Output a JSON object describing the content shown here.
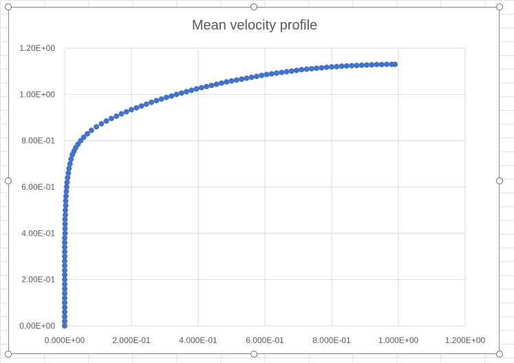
{
  "chart_data": {
    "type": "scatter",
    "title": "Mean velocity profile",
    "xlabel": "",
    "ylabel": "",
    "xlim": [
      0,
      1.2
    ],
    "ylim": [
      0,
      1.2
    ],
    "x_ticks": [
      "0.000E+00",
      "2.000E-01",
      "4.000E-01",
      "6.000E-01",
      "8.000E-01",
      "1.000E+00",
      "1.200E+00"
    ],
    "y_ticks": [
      "0.00E+00",
      "2.00E-01",
      "4.00E-01",
      "6.00E-01",
      "8.00E-01",
      "1.00E+00",
      "1.20E+00"
    ],
    "grid": true,
    "legend": "none",
    "series": [
      {
        "color": "#4472c4",
        "x": [
          0.0,
          0.0,
          0.0,
          0.0,
          0.0,
          0.0,
          0.0,
          0.0,
          0.0,
          0.0,
          0.0,
          0.0,
          0.0,
          0.0,
          0.0,
          0.0,
          0.0,
          0.0,
          0.0,
          0.0,
          0.001,
          0.001,
          0.001,
          0.001,
          0.002,
          0.002,
          0.003,
          0.003,
          0.004,
          0.005,
          0.006,
          0.007,
          0.009,
          0.011,
          0.013,
          0.016,
          0.019,
          0.023,
          0.028,
          0.033,
          0.04,
          0.048,
          0.057,
          0.068,
          0.08,
          0.095,
          0.11,
          0.125,
          0.14,
          0.155,
          0.17,
          0.185,
          0.2,
          0.215,
          0.23,
          0.245,
          0.26,
          0.275,
          0.29,
          0.305,
          0.32,
          0.335,
          0.35,
          0.365,
          0.38,
          0.395,
          0.41,
          0.425,
          0.44,
          0.455,
          0.47,
          0.485,
          0.5,
          0.515,
          0.53,
          0.545,
          0.56,
          0.575,
          0.59,
          0.605,
          0.62,
          0.635,
          0.65,
          0.665,
          0.68,
          0.695,
          0.71,
          0.725,
          0.74,
          0.755,
          0.77,
          0.785,
          0.8,
          0.815,
          0.83,
          0.845,
          0.86,
          0.875,
          0.89,
          0.905,
          0.92,
          0.935,
          0.95,
          0.965,
          0.98,
          0.99
        ],
        "y": [
          0.0,
          0.02,
          0.04,
          0.06,
          0.08,
          0.1,
          0.12,
          0.14,
          0.16,
          0.18,
          0.2,
          0.22,
          0.24,
          0.26,
          0.28,
          0.3,
          0.32,
          0.34,
          0.36,
          0.38,
          0.4,
          0.42,
          0.44,
          0.46,
          0.48,
          0.5,
          0.52,
          0.54,
          0.56,
          0.58,
          0.6,
          0.62,
          0.64,
          0.66,
          0.68,
          0.7,
          0.72,
          0.74,
          0.755,
          0.77,
          0.785,
          0.8,
          0.815,
          0.83,
          0.845,
          0.86,
          0.873,
          0.885,
          0.896,
          0.906,
          0.916,
          0.925,
          0.934,
          0.942,
          0.95,
          0.958,
          0.966,
          0.973,
          0.98,
          0.987,
          0.993,
          1.0,
          1.006,
          1.012,
          1.018,
          1.024,
          1.029,
          1.034,
          1.039,
          1.044,
          1.049,
          1.054,
          1.058,
          1.062,
          1.066,
          1.07,
          1.074,
          1.078,
          1.082,
          1.086,
          1.089,
          1.092,
          1.095,
          1.098,
          1.101,
          1.104,
          1.107,
          1.109,
          1.111,
          1.113,
          1.115,
          1.117,
          1.119,
          1.12,
          1.122,
          1.123,
          1.124,
          1.125,
          1.126,
          1.127,
          1.128,
          1.129,
          1.129,
          1.13,
          1.13,
          1.13
        ]
      }
    ]
  }
}
